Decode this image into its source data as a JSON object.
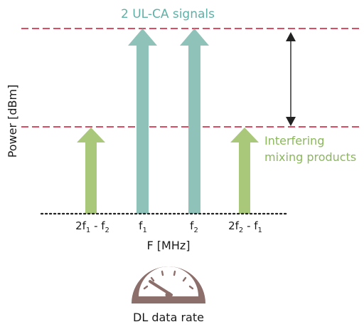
{
  "title": "2 UL-CA signals",
  "y_axis_label": "Power [dBm]",
  "x_axis_label": "F [MHz]",
  "annotation": [
    "Interfering",
    "mixing products"
  ],
  "gauge_label": "DL data rate",
  "frequency_labels": [
    {
      "base": "2f",
      "sub1": "1",
      "mid": " - f",
      "sub2": "2"
    },
    {
      "base": "f",
      "sub1": "1"
    },
    {
      "base": "f",
      "sub1": "2"
    },
    {
      "base": "2f",
      "sub1": "2",
      "mid": " - f",
      "sub2": "1"
    }
  ],
  "arrows": [
    {
      "kind": "mixing-product",
      "level": "lower"
    },
    {
      "kind": "signal",
      "level": "upper"
    },
    {
      "kind": "signal",
      "level": "upper"
    },
    {
      "kind": "mixing-product",
      "level": "lower"
    }
  ],
  "colors": {
    "signal": "#8fc2b9",
    "signal_text": "#5fb0a6",
    "mixing_product": "#a9c87a",
    "mixing_text": "#8ab85a",
    "dashed_line": "#d8344f",
    "baseline": "#222222",
    "gauge": "#8c6e6a",
    "text": "#1a1a1a"
  },
  "icons": [
    "double-headed-arrow-icon",
    "gauge-icon"
  ]
}
